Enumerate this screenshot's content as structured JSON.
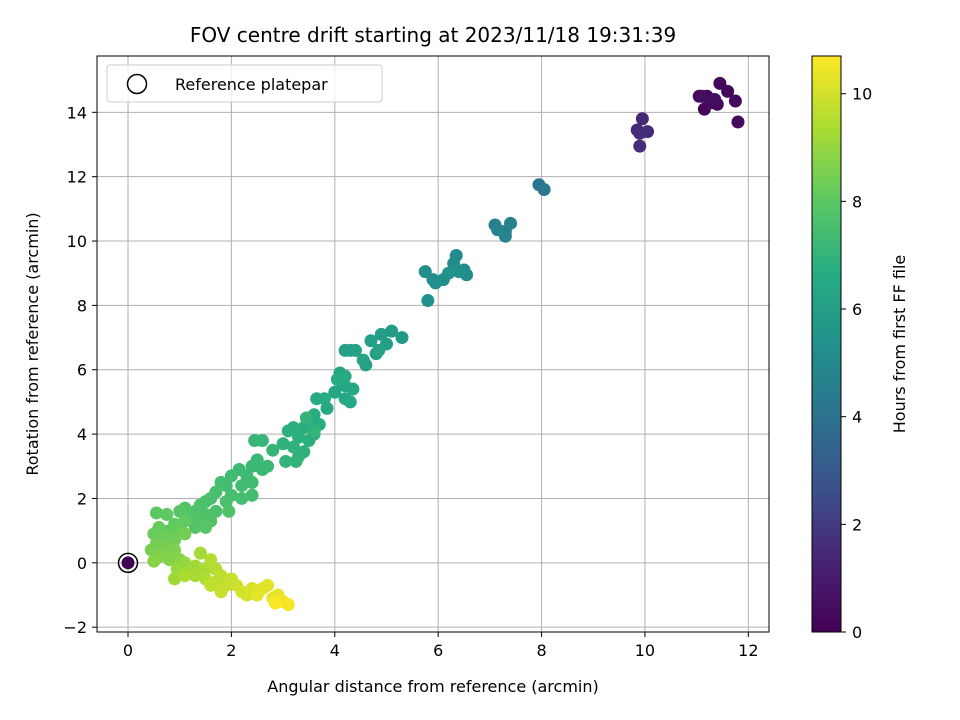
{
  "chart_data": {
    "type": "scatter",
    "title": "FOV centre drift starting at 2023/11/18 19:31:39",
    "xlabel": "Angular distance from reference (arcmin)",
    "ylabel": "Rotation from reference (arcmin)",
    "xlim": [
      -0.6,
      12.4
    ],
    "ylim": [
      -2.15,
      15.75
    ],
    "xticks": [
      0,
      2,
      4,
      6,
      8,
      10,
      12
    ],
    "yticks": [
      -2,
      0,
      2,
      4,
      6,
      8,
      10,
      12,
      14
    ],
    "grid": true,
    "legend": {
      "position": "top-left",
      "entries": [
        "Reference platepar"
      ]
    },
    "reference_point": {
      "x": 0,
      "y": 0,
      "color_value": 0
    },
    "colorbar": {
      "label": "Hours from first FF file",
      "colormap": "viridis",
      "range": [
        0,
        10.7
      ],
      "ticks": [
        0,
        2,
        4,
        6,
        8,
        10
      ]
    },
    "series": [
      {
        "points": [
          [
            11.05,
            14.5,
            0.1
          ],
          [
            11.2,
            14.5,
            0.15
          ],
          [
            11.15,
            14.1,
            0.2
          ],
          [
            11.3,
            14.3,
            0.2
          ],
          [
            11.45,
            14.9,
            0.25
          ],
          [
            11.6,
            14.65,
            0.3
          ],
          [
            11.4,
            14.25,
            0.3
          ],
          [
            11.75,
            14.35,
            0.35
          ],
          [
            11.8,
            13.7,
            0.35
          ],
          [
            11.25,
            14.3,
            0.4
          ],
          [
            11.1,
            14.5,
            0.45
          ],
          [
            11.35,
            14.4,
            0.45
          ],
          [
            9.85,
            13.45,
            1.45
          ],
          [
            9.95,
            13.8,
            1.5
          ],
          [
            10.05,
            13.4,
            1.55
          ],
          [
            9.9,
            12.95,
            1.6
          ],
          [
            9.9,
            13.35,
            1.6
          ],
          [
            7.95,
            11.75,
            4.2
          ],
          [
            8.05,
            11.6,
            4.25
          ],
          [
            7.1,
            10.5,
            4.6
          ],
          [
            7.3,
            10.3,
            4.65
          ],
          [
            7.4,
            10.55,
            4.7
          ],
          [
            7.15,
            10.35,
            4.75
          ],
          [
            7.3,
            10.15,
            4.8
          ],
          [
            6.35,
            9.55,
            5.05
          ],
          [
            6.5,
            9.1,
            5.1
          ],
          [
            6.3,
            9.3,
            5.1
          ],
          [
            6.55,
            8.95,
            5.15
          ],
          [
            5.75,
            9.05,
            5.2
          ],
          [
            5.9,
            8.8,
            5.25
          ],
          [
            6.1,
            8.8,
            5.3
          ],
          [
            5.95,
            8.7,
            5.3
          ],
          [
            6.4,
            9.05,
            5.35
          ],
          [
            5.8,
            8.15,
            5.4
          ],
          [
            6.2,
            9.0,
            5.4
          ],
          [
            5.3,
            7.0,
            5.8
          ],
          [
            5.1,
            7.2,
            5.85
          ],
          [
            4.9,
            7.1,
            5.9
          ],
          [
            5.0,
            6.8,
            5.95
          ],
          [
            4.8,
            6.5,
            6.0
          ],
          [
            4.7,
            6.9,
            6.0
          ],
          [
            4.6,
            6.15,
            6.05
          ],
          [
            4.3,
            6.6,
            6.1
          ],
          [
            4.2,
            6.6,
            6.1
          ],
          [
            4.4,
            6.6,
            6.15
          ],
          [
            4.55,
            6.3,
            6.2
          ],
          [
            4.85,
            6.6,
            6.2
          ],
          [
            4.1,
            5.9,
            6.3
          ],
          [
            4.2,
            5.5,
            6.35
          ],
          [
            4.15,
            5.6,
            6.35
          ],
          [
            4.0,
            5.3,
            6.4
          ],
          [
            4.3,
            5.0,
            6.4
          ],
          [
            4.2,
            5.1,
            6.45
          ],
          [
            4.35,
            5.4,
            6.45
          ],
          [
            3.85,
            4.8,
            6.5
          ],
          [
            3.65,
            5.1,
            6.5
          ],
          [
            4.05,
            5.7,
            6.55
          ],
          [
            4.2,
            5.8,
            6.55
          ],
          [
            3.8,
            5.1,
            6.6
          ],
          [
            3.6,
            4.6,
            6.65
          ],
          [
            3.5,
            4.3,
            6.7
          ],
          [
            3.7,
            4.3,
            6.7
          ],
          [
            3.4,
            4.2,
            6.75
          ],
          [
            3.6,
            4.0,
            6.75
          ],
          [
            3.3,
            3.9,
            6.8
          ],
          [
            3.5,
            3.8,
            6.8
          ],
          [
            3.2,
            4.2,
            6.85
          ],
          [
            3.1,
            4.1,
            6.85
          ],
          [
            3.0,
            3.7,
            6.9
          ],
          [
            3.4,
            3.45,
            6.9
          ],
          [
            3.2,
            3.6,
            6.95
          ],
          [
            3.3,
            3.3,
            6.95
          ],
          [
            3.05,
            3.15,
            7.0
          ],
          [
            3.25,
            3.15,
            7.0
          ],
          [
            3.6,
            4.1,
            7.05
          ],
          [
            3.45,
            4.5,
            7.05
          ],
          [
            2.8,
            3.5,
            7.1
          ],
          [
            2.6,
            3.8,
            7.15
          ],
          [
            2.45,
            3.8,
            7.15
          ],
          [
            2.7,
            3.0,
            7.2
          ],
          [
            2.5,
            3.2,
            7.2
          ],
          [
            2.6,
            2.9,
            7.25
          ],
          [
            2.4,
            3.0,
            7.25
          ],
          [
            2.3,
            2.7,
            7.3
          ],
          [
            2.15,
            2.9,
            7.3
          ],
          [
            2.4,
            2.5,
            7.35
          ],
          [
            2.0,
            2.7,
            7.35
          ],
          [
            2.2,
            2.4,
            7.4
          ],
          [
            1.9,
            2.4,
            7.4
          ],
          [
            2.4,
            2.1,
            7.45
          ],
          [
            1.8,
            2.5,
            7.45
          ],
          [
            2.0,
            2.1,
            7.5
          ],
          [
            2.2,
            2.0,
            7.5
          ],
          [
            1.7,
            2.2,
            7.55
          ],
          [
            1.6,
            2.0,
            7.55
          ],
          [
            1.9,
            1.9,
            7.6
          ],
          [
            1.5,
            1.9,
            7.6
          ],
          [
            1.7,
            1.6,
            7.65
          ],
          [
            1.4,
            1.8,
            7.65
          ],
          [
            1.95,
            1.6,
            7.7
          ],
          [
            1.5,
            1.5,
            7.7
          ],
          [
            1.3,
            1.6,
            7.75
          ],
          [
            1.6,
            1.3,
            7.75
          ],
          [
            1.4,
            1.3,
            7.8
          ],
          [
            1.1,
            1.7,
            7.8
          ],
          [
            1.2,
            1.4,
            7.85
          ],
          [
            1.3,
            1.1,
            7.85
          ],
          [
            1.0,
            1.6,
            7.9
          ],
          [
            1.5,
            1.1,
            7.9
          ],
          [
            0.55,
            1.55,
            8.0
          ],
          [
            0.75,
            1.5,
            8.05
          ],
          [
            0.9,
            1.2,
            8.1
          ],
          [
            1.1,
            1.3,
            8.1
          ],
          [
            0.8,
            1.0,
            8.15
          ],
          [
            1.0,
            1.0,
            8.2
          ],
          [
            0.6,
            1.1,
            8.2
          ],
          [
            0.5,
            0.9,
            8.25
          ],
          [
            0.7,
            0.8,
            8.3
          ],
          [
            0.9,
            0.7,
            8.35
          ],
          [
            0.55,
            0.6,
            8.4
          ],
          [
            0.75,
            0.5,
            8.45
          ],
          [
            1.1,
            0.9,
            8.45
          ],
          [
            0.45,
            0.4,
            8.5
          ],
          [
            0.65,
            0.3,
            8.55
          ],
          [
            0.9,
            0.4,
            8.6
          ],
          [
            0.6,
            0.2,
            8.65
          ],
          [
            0.8,
            0.1,
            8.7
          ],
          [
            0.5,
            0.05,
            8.75
          ],
          [
            1.0,
            0.1,
            8.75
          ],
          [
            1.1,
            0.0,
            9.0
          ],
          [
            0.95,
            -0.2,
            9.05
          ],
          [
            1.15,
            -0.3,
            9.1
          ],
          [
            0.9,
            -0.5,
            9.15
          ],
          [
            1.3,
            -0.1,
            9.2
          ],
          [
            1.4,
            0.3,
            9.25
          ],
          [
            1.3,
            -0.4,
            9.3
          ],
          [
            1.5,
            -0.2,
            9.35
          ],
          [
            1.1,
            -0.4,
            9.4
          ],
          [
            1.5,
            -0.5,
            9.45
          ],
          [
            1.7,
            -0.2,
            9.5
          ],
          [
            1.6,
            0.1,
            9.5
          ],
          [
            1.7,
            -0.6,
            9.6
          ],
          [
            1.8,
            -0.4,
            9.65
          ],
          [
            1.6,
            -0.7,
            9.7
          ],
          [
            1.9,
            -0.7,
            9.75
          ],
          [
            2.0,
            -0.5,
            9.8
          ],
          [
            1.8,
            -0.9,
            9.85
          ],
          [
            2.1,
            -0.7,
            9.9
          ],
          [
            2.2,
            -0.9,
            10.0
          ],
          [
            2.3,
            -1.0,
            10.05
          ],
          [
            2.4,
            -0.8,
            10.1
          ],
          [
            2.6,
            -0.8,
            10.2
          ],
          [
            2.7,
            -0.7,
            10.25
          ],
          [
            2.5,
            -1.0,
            10.3
          ],
          [
            2.8,
            -1.1,
            10.35
          ],
          [
            2.9,
            -1.0,
            10.4
          ],
          [
            3.0,
            -1.2,
            10.5
          ],
          [
            3.1,
            -1.3,
            10.6
          ],
          [
            2.85,
            -1.25,
            10.65
          ]
        ]
      }
    ]
  }
}
